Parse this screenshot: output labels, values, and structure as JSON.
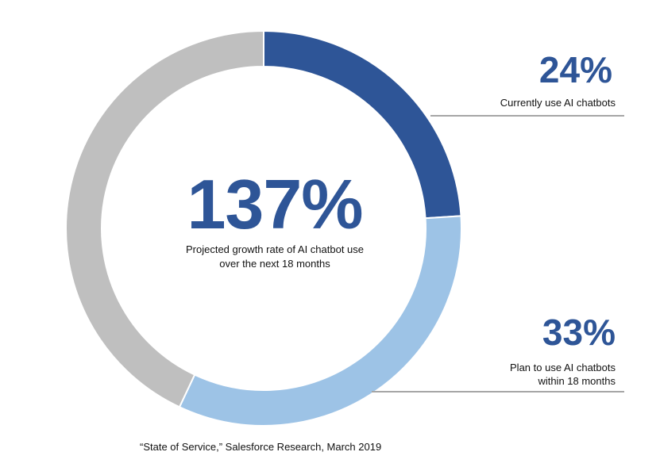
{
  "chart_data": {
    "type": "pie",
    "categories": [
      "Currently use AI chatbots",
      "Plan to use AI chatbots within 18 months",
      ""
    ],
    "values": [
      24,
      33,
      43
    ],
    "colors": [
      "#2e5597",
      "#9dc3e6",
      "#bfbfbf"
    ],
    "donut": true
  },
  "center": {
    "value": "137%",
    "caption": "Projected growth rate of AI chatbot use\nover the next 18 months"
  },
  "callouts": [
    {
      "value": "24%",
      "label": "Currently use AI chatbots"
    },
    {
      "value": "33%",
      "label": "Plan to use AI chatbots\nwithin 18 months"
    }
  ],
  "source": "“State of Service,” Salesforce Research, March 2019"
}
